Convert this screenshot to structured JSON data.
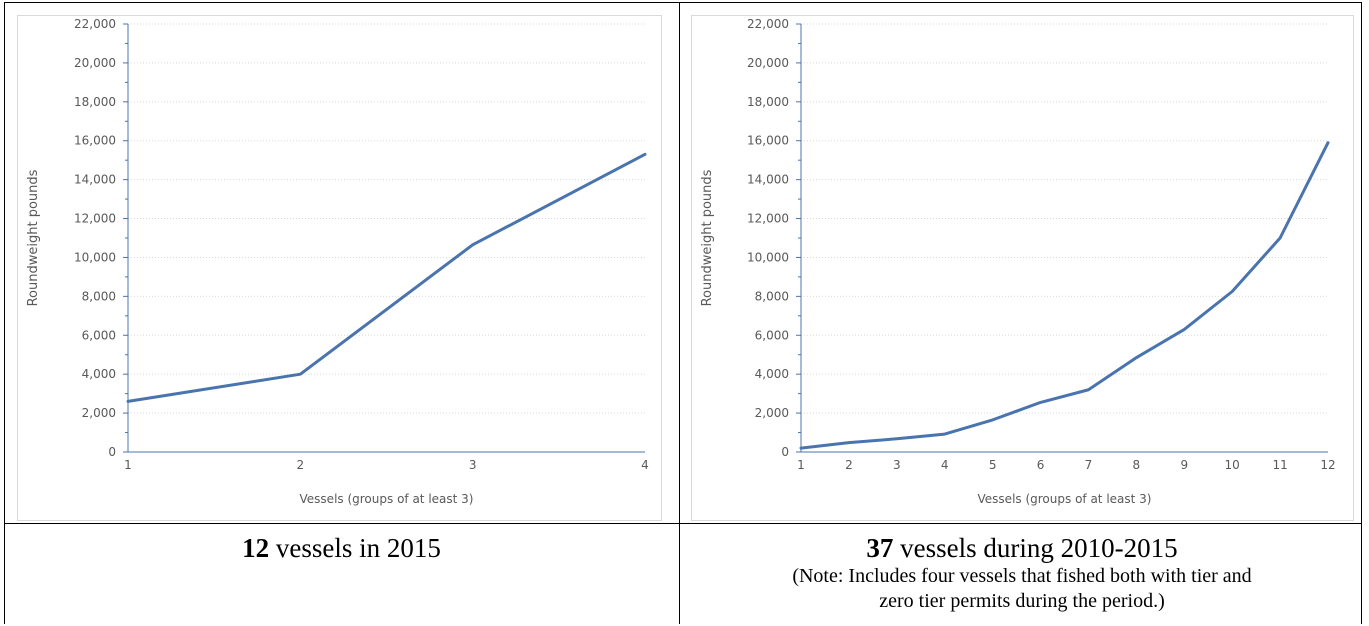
{
  "chart_data": [
    {
      "type": "line",
      "xlabel": "Vessels (groups of at least 3)",
      "ylabel": "Roundweight pounds",
      "ylim": [
        0,
        22000
      ],
      "yticks": [
        "0",
        "2,000",
        "4,000",
        "6,000",
        "8,000",
        "10,000",
        "12,000",
        "14,000",
        "16,000",
        "18,000",
        "20,000",
        "22,000"
      ],
      "categories": [
        "1",
        "2",
        "3",
        "4"
      ],
      "series": [
        {
          "values": [
            2600,
            4000,
            10650,
            15300
          ]
        }
      ],
      "grid": true,
      "color": "#4a74ae"
    },
    {
      "type": "line",
      "xlabel": "Vessels (groups of at least 3)",
      "ylabel": "Roundweight pounds",
      "ylim": [
        0,
        22000
      ],
      "yticks": [
        "0",
        "2,000",
        "4,000",
        "6,000",
        "8,000",
        "10,000",
        "12,000",
        "14,000",
        "16,000",
        "18,000",
        "20,000",
        "22,000"
      ],
      "categories": [
        "1",
        "2",
        "3",
        "4",
        "5",
        "6",
        "7",
        "8",
        "9",
        "10",
        "11",
        "12"
      ],
      "series": [
        {
          "values": [
            200,
            480,
            680,
            920,
            1650,
            2550,
            3200,
            4850,
            6300,
            8250,
            11000,
            15900
          ]
        }
      ],
      "grid": true,
      "color": "#4a74ae"
    }
  ],
  "captions": {
    "left": {
      "bold": "12",
      "rest": " vessels in 2015"
    },
    "right": {
      "bold": "37",
      "rest": " vessels during 2010-2015",
      "note_line1": "(Note: Includes four vessels that fished both with tier and",
      "note_line2": "zero tier permits during the period.)"
    }
  }
}
